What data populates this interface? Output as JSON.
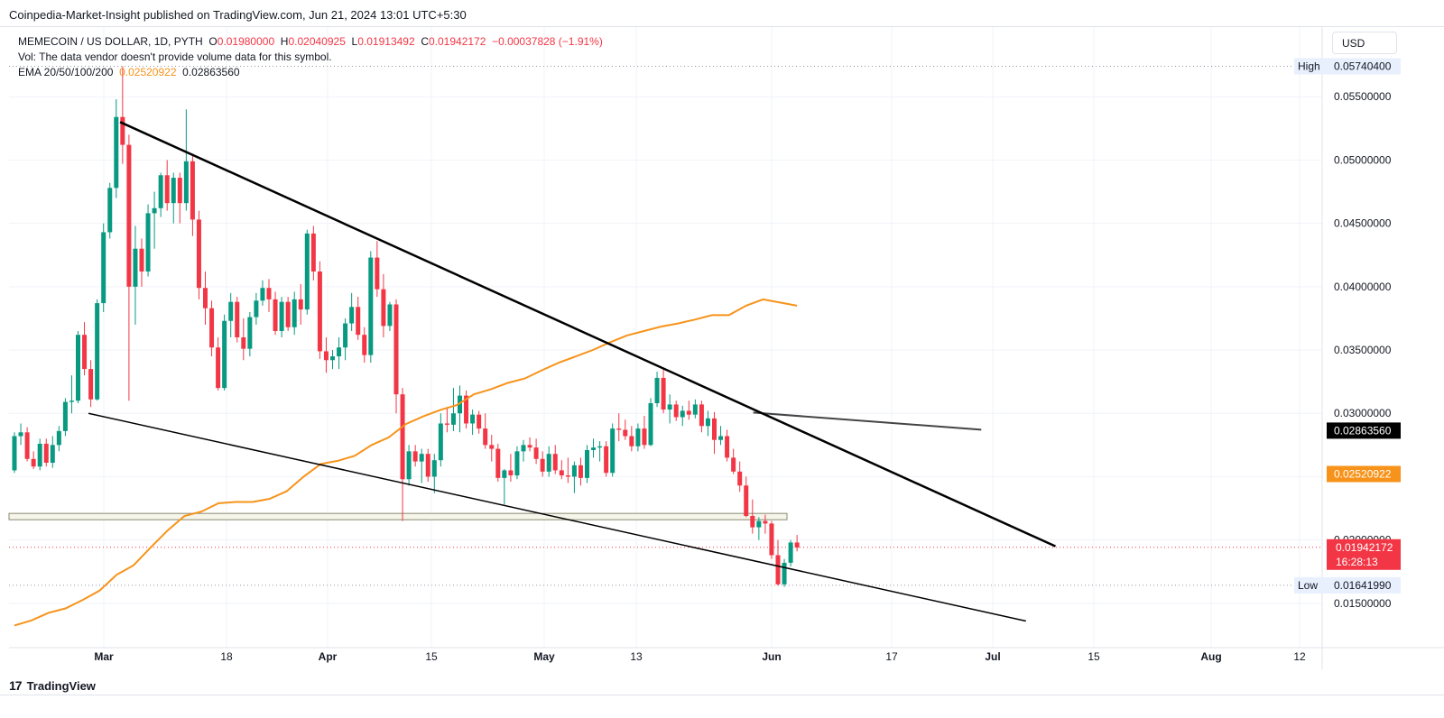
{
  "header": {
    "text": "Coinpedia-Market-Insight published on TradingView.com, Jun 21, 2024 13:01 UTC+5:30"
  },
  "legend": {
    "symbol": "MEMECOIN / US DOLLAR, 1D, PYTH",
    "o_label": "O",
    "o_value": "0.01980000",
    "h_label": "H",
    "h_value": "0.02040925",
    "l_label": "L",
    "l_value": "0.01913492",
    "c_label": "C",
    "c_value": "0.01942172",
    "change": "−0.00037828 (−1.91%)",
    "vol": "Vol: The data vendor doesn't provide volume data for this symbol.",
    "ema_label": "EMA 20/50/100/200",
    "ema_value1": "0.02520922",
    "ema_value2": "0.02863560"
  },
  "currency_button": "USD",
  "footer": {
    "logo": "17",
    "brand": "TradingView"
  },
  "colors": {
    "up": "#089981",
    "down": "#f23645",
    "ema20": "#f7931a",
    "ema200": "#000000",
    "trend": "#000000",
    "last_price": "#f23645"
  },
  "chart_data": {
    "type": "candlestick",
    "x_labels": [
      "Mar",
      "18",
      "Apr",
      "15",
      "May",
      "13",
      "Jun",
      "17",
      "Jul",
      "15",
      "Aug",
      "12"
    ],
    "y_ticks": [
      "0.05500000",
      "0.05000000",
      "0.04500000",
      "0.04000000",
      "0.03500000",
      "0.03000000",
      "0.02500000",
      "0.02000000",
      "0.01500000"
    ],
    "ylim": [
      0.0115,
      0.0605
    ],
    "high_label": "High",
    "high_value": "0.05740400",
    "low_label": "Low",
    "low_value": "0.01641990",
    "last_price": "0.01942172",
    "countdown": "16:28:13",
    "ema20_value": "0.02520922",
    "ema200_value": "0.02863560",
    "candles": [
      [
        0.0255,
        0.0285,
        0.0253,
        0.0282
      ],
      [
        0.0282,
        0.0292,
        0.0275,
        0.0285
      ],
      [
        0.0285,
        0.0289,
        0.0262,
        0.0264
      ],
      [
        0.0264,
        0.027,
        0.0256,
        0.0258
      ],
      [
        0.0258,
        0.028,
        0.0255,
        0.0276
      ],
      [
        0.0276,
        0.028,
        0.0258,
        0.0261
      ],
      [
        0.0261,
        0.0282,
        0.0257,
        0.0275
      ],
      [
        0.0275,
        0.029,
        0.027,
        0.0286
      ],
      [
        0.0286,
        0.0312,
        0.0282,
        0.0309
      ],
      [
        0.0309,
        0.033,
        0.03,
        0.031
      ],
      [
        0.031,
        0.0365,
        0.0308,
        0.0362
      ],
      [
        0.0362,
        0.0372,
        0.033,
        0.0335
      ],
      [
        0.0335,
        0.0342,
        0.0305,
        0.0311
      ],
      [
        0.0311,
        0.039,
        0.031,
        0.0387
      ],
      [
        0.0387,
        0.045,
        0.038,
        0.0443
      ],
      [
        0.0443,
        0.0482,
        0.0438,
        0.0478
      ],
      [
        0.0478,
        0.0548,
        0.047,
        0.0534
      ],
      [
        0.0534,
        0.0574,
        0.0497,
        0.0512
      ],
      [
        0.0512,
        0.052,
        0.031,
        0.04
      ],
      [
        0.04,
        0.0448,
        0.037,
        0.043
      ],
      [
        0.043,
        0.0438,
        0.04,
        0.0412
      ],
      [
        0.0412,
        0.0465,
        0.0408,
        0.0458
      ],
      [
        0.0458,
        0.0475,
        0.043,
        0.0462
      ],
      [
        0.0462,
        0.049,
        0.0455,
        0.0488
      ],
      [
        0.0488,
        0.05,
        0.046,
        0.0466
      ],
      [
        0.0466,
        0.049,
        0.045,
        0.0486
      ],
      [
        0.0486,
        0.049,
        0.045,
        0.0466
      ],
      [
        0.0466,
        0.054,
        0.046,
        0.0499
      ],
      [
        0.0499,
        0.0505,
        0.044,
        0.0453
      ],
      [
        0.0453,
        0.046,
        0.039,
        0.0399
      ],
      [
        0.0399,
        0.0412,
        0.037,
        0.0383
      ],
      [
        0.0383,
        0.0389,
        0.0345,
        0.0352
      ],
      [
        0.0352,
        0.036,
        0.0318,
        0.032
      ],
      [
        0.032,
        0.0378,
        0.0318,
        0.0373
      ],
      [
        0.0373,
        0.0395,
        0.036,
        0.0388
      ],
      [
        0.0388,
        0.0392,
        0.0356,
        0.036
      ],
      [
        0.036,
        0.0375,
        0.0342,
        0.0351
      ],
      [
        0.0351,
        0.038,
        0.0345,
        0.0376
      ],
      [
        0.0376,
        0.0395,
        0.037,
        0.0389
      ],
      [
        0.0389,
        0.0405,
        0.0385,
        0.0399
      ],
      [
        0.0399,
        0.0406,
        0.038,
        0.039
      ],
      [
        0.039,
        0.0396,
        0.0362,
        0.0365
      ],
      [
        0.0365,
        0.0392,
        0.036,
        0.0388
      ],
      [
        0.0388,
        0.0392,
        0.0365,
        0.0368
      ],
      [
        0.0368,
        0.0396,
        0.0362,
        0.039
      ],
      [
        0.039,
        0.0402,
        0.037,
        0.0382
      ],
      [
        0.0382,
        0.0445,
        0.0378,
        0.0442
      ],
      [
        0.0442,
        0.0448,
        0.0405,
        0.0412
      ],
      [
        0.0412,
        0.042,
        0.0343,
        0.0349
      ],
      [
        0.0349,
        0.036,
        0.0332,
        0.0342
      ],
      [
        0.0342,
        0.035,
        0.0335,
        0.0345
      ],
      [
        0.0345,
        0.036,
        0.0335,
        0.0352
      ],
      [
        0.0352,
        0.0375,
        0.0342,
        0.0371
      ],
      [
        0.0371,
        0.0395,
        0.0365,
        0.0384
      ],
      [
        0.0384,
        0.0392,
        0.0358,
        0.0362
      ],
      [
        0.0362,
        0.0368,
        0.034,
        0.0346
      ],
      [
        0.0346,
        0.0428,
        0.034,
        0.0423
      ],
      [
        0.0423,
        0.0436,
        0.0392,
        0.0398
      ],
      [
        0.0398,
        0.041,
        0.036,
        0.0369
      ],
      [
        0.0369,
        0.0388,
        0.0365,
        0.0386
      ],
      [
        0.0386,
        0.039,
        0.03,
        0.0315
      ],
      [
        0.0315,
        0.032,
        0.0215,
        0.0248
      ],
      [
        0.0248,
        0.0275,
        0.0243,
        0.027
      ],
      [
        0.027,
        0.0275,
        0.0258,
        0.0262
      ],
      [
        0.0262,
        0.0272,
        0.0245,
        0.0268
      ],
      [
        0.0268,
        0.0272,
        0.0246,
        0.025
      ],
      [
        0.025,
        0.0268,
        0.0237,
        0.0263
      ],
      [
        0.0263,
        0.03,
        0.0258,
        0.0292
      ],
      [
        0.0292,
        0.0305,
        0.0285,
        0.0291
      ],
      [
        0.0291,
        0.032,
        0.0286,
        0.03
      ],
      [
        0.03,
        0.0322,
        0.0285,
        0.0314
      ],
      [
        0.0314,
        0.0318,
        0.0288,
        0.0292
      ],
      [
        0.0292,
        0.0303,
        0.0283,
        0.0299
      ],
      [
        0.0299,
        0.0302,
        0.0284,
        0.0288
      ],
      [
        0.0288,
        0.03,
        0.0272,
        0.0275
      ],
      [
        0.0275,
        0.0283,
        0.0262,
        0.0272
      ],
      [
        0.0272,
        0.0276,
        0.0246,
        0.0249
      ],
      [
        0.0249,
        0.0256,
        0.0228,
        0.0255
      ],
      [
        0.0255,
        0.0268,
        0.0246,
        0.0251
      ],
      [
        0.0251,
        0.0274,
        0.0248,
        0.027
      ],
      [
        0.027,
        0.0279,
        0.0262,
        0.0275
      ],
      [
        0.0275,
        0.0281,
        0.027,
        0.0273
      ],
      [
        0.0273,
        0.028,
        0.026,
        0.0264
      ],
      [
        0.0264,
        0.027,
        0.025,
        0.0254
      ],
      [
        0.0254,
        0.0274,
        0.025,
        0.0268
      ],
      [
        0.0268,
        0.0275,
        0.0252,
        0.0255
      ],
      [
        0.0255,
        0.0263,
        0.0248,
        0.0251
      ],
      [
        0.0251,
        0.0265,
        0.0245,
        0.025
      ],
      [
        0.025,
        0.0262,
        0.0237,
        0.0259
      ],
      [
        0.0259,
        0.0265,
        0.0243,
        0.0249
      ],
      [
        0.0249,
        0.0275,
        0.0245,
        0.0271
      ],
      [
        0.0271,
        0.028,
        0.0265,
        0.0273
      ],
      [
        0.0273,
        0.0278,
        0.0262,
        0.0274
      ],
      [
        0.0274,
        0.0278,
        0.025,
        0.0253
      ],
      [
        0.0253,
        0.0292,
        0.025,
        0.0288
      ],
      [
        0.0288,
        0.03,
        0.0278,
        0.0287
      ],
      [
        0.0287,
        0.0295,
        0.0279,
        0.0282
      ],
      [
        0.0282,
        0.029,
        0.027,
        0.0274
      ],
      [
        0.0274,
        0.0292,
        0.027,
        0.0288
      ],
      [
        0.0288,
        0.0298,
        0.0272,
        0.0275
      ],
      [
        0.0275,
        0.0312,
        0.0274,
        0.0308
      ],
      [
        0.0308,
        0.0333,
        0.0305,
        0.0328
      ],
      [
        0.0328,
        0.0336,
        0.03,
        0.0303
      ],
      [
        0.0303,
        0.0315,
        0.0292,
        0.0307
      ],
      [
        0.0307,
        0.031,
        0.0294,
        0.0297
      ],
      [
        0.0297,
        0.0306,
        0.029,
        0.0302
      ],
      [
        0.0302,
        0.031,
        0.0295,
        0.0299
      ],
      [
        0.0299,
        0.0311,
        0.0296,
        0.0307
      ],
      [
        0.0307,
        0.031,
        0.0285,
        0.029
      ],
      [
        0.029,
        0.0302,
        0.0282,
        0.0296
      ],
      [
        0.0296,
        0.0301,
        0.0268,
        0.0279
      ],
      [
        0.0279,
        0.029,
        0.0275,
        0.0282
      ],
      [
        0.0282,
        0.0287,
        0.0262,
        0.0265
      ],
      [
        0.0265,
        0.0272,
        0.0252,
        0.0254
      ],
      [
        0.0254,
        0.0262,
        0.0238,
        0.0243
      ],
      [
        0.0243,
        0.025,
        0.0218,
        0.0219
      ],
      [
        0.0219,
        0.0232,
        0.0205,
        0.021
      ],
      [
        0.021,
        0.0218,
        0.02,
        0.0215
      ],
      [
        0.0215,
        0.022,
        0.0205,
        0.0213
      ],
      [
        0.0213,
        0.0215,
        0.0185,
        0.0188
      ],
      [
        0.0188,
        0.02,
        0.0164,
        0.0165
      ],
      [
        0.0165,
        0.0185,
        0.0163,
        0.0182
      ],
      [
        0.0182,
        0.02,
        0.0179,
        0.0198
      ],
      [
        0.0198,
        0.0204,
        0.0191,
        0.0194
      ]
    ],
    "ema20": [
      0.0265,
      0.0273,
      0.0285,
      0.0292,
      0.0305,
      0.032,
      0.0345,
      0.036,
      0.0388,
      0.0415,
      0.0438,
      0.0445,
      0.0458,
      0.046,
      0.046,
      0.0465,
      0.0477,
      0.05,
      0.052,
      0.0525,
      0.0533,
      0.055,
      0.0562,
      0.0583,
      0.0595,
      0.0605,
      0.0613,
      0.063,
      0.0638,
      0.0648,
      0.0655,
      0.0668,
      0.068,
      0.069,
      0.07,
      0.0712,
      0.0723,
      0.073,
      0.0737,
      0.0742,
      0.0748,
      0.0755,
      0.0755,
      0.077,
      0.078,
      0.0775,
      0.077
    ],
    "ema200_trend": [
      [
        0.5667,
        0.3006
      ],
      [
        0.7404,
        0.2871
      ]
    ],
    "trendlines": [
      {
        "name": "upper-trend",
        "x1": 0.0846,
        "y1": 0.053,
        "x2": 0.7969,
        "y2": 0.0195
      },
      {
        "name": "lower-trend",
        "x1": 0.0605,
        "y1": 0.03,
        "x2": 0.7744,
        "y2": 0.0136
      }
    ],
    "support_zone": [
      0.0216,
      0.0221
    ],
    "grid": true,
    "legend": "top-left"
  }
}
